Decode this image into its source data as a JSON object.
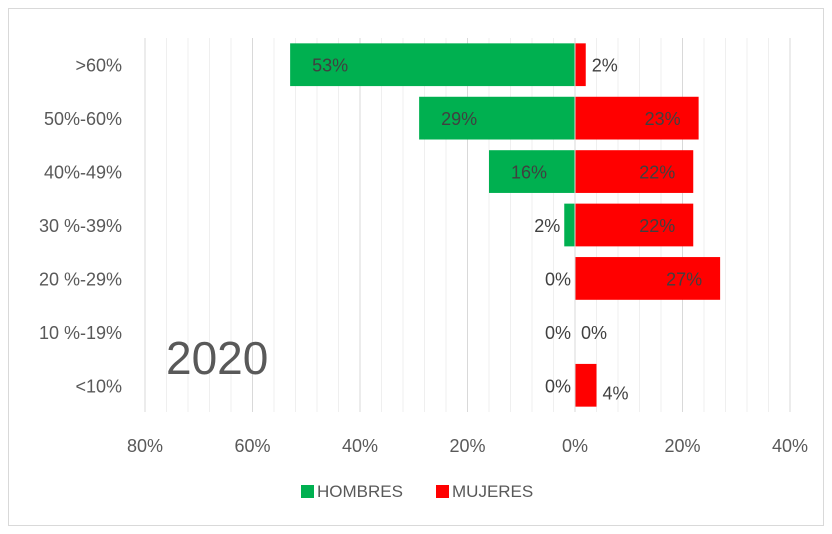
{
  "chart_data": {
    "type": "bar",
    "orientation": "horizontal-diverging",
    "annotation": "2020",
    "categories": [
      ">60%",
      "50%-60%",
      "40%-49%",
      "30 %-39%",
      "20 %-29%",
      "10 %-19%",
      "<10%"
    ],
    "series": [
      {
        "name": "HOMBRES",
        "color": "#00b050",
        "values": [
          53,
          29,
          16,
          2,
          0,
          0,
          0
        ],
        "labels": [
          "53%",
          "29%",
          "16%",
          "2%",
          "0%",
          "0%",
          "0%"
        ]
      },
      {
        "name": "MUJERES",
        "color": "#ff0000",
        "values": [
          2,
          23,
          22,
          22,
          27,
          0,
          4
        ],
        "labels": [
          "2%",
          "23%",
          "22%",
          "22%",
          "27%",
          "0%",
          "4%"
        ]
      }
    ],
    "x_ticks": [
      "80%",
      "60%",
      "40%",
      "20%",
      "0%",
      "20%",
      "40%"
    ],
    "xlim": [
      -80,
      40
    ],
    "grid": "vertical",
    "legend_position": "bottom"
  }
}
